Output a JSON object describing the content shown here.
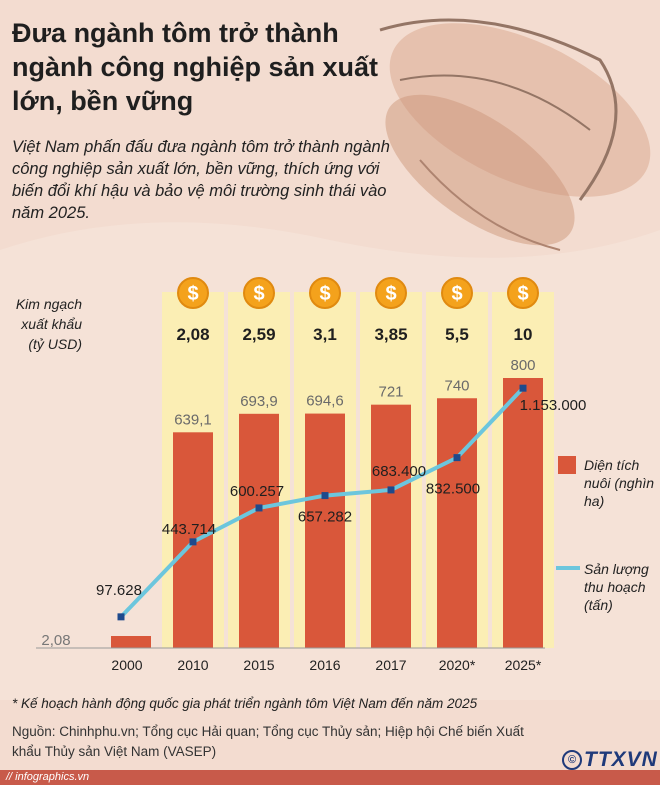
{
  "title": "Đưa ngành tôm trở thành ngành công nghiệp sản xuất lớn, bền vững",
  "subtitle": "Việt Nam phấn đấu đưa ngành tôm trở thành ngành công nghiệp sản xuất lớn, bền vững, thích ứng với biến đổi khí hậu và bảo vệ môi trường sinh thái vào năm 2025.",
  "export_label": "Kim ngạch xuất khẩu (tỷ USD)",
  "coin_symbol": "$",
  "legend": {
    "area_label": "Diện tích nuôi (nghìn ha)",
    "output_label": "Sản lượng thu hoạch (tấn)"
  },
  "footnote": "* Kế hoạch hành động quốc gia phát triển ngành tôm Việt Nam đến năm 2025",
  "source": "Nguồn: Chinhphu.vn; Tổng cục Hải quan; Tổng cục Thủy sản; Hiệp hội Chế biến Xuất khẩu Thủy sản Việt Nam (VASEP)",
  "footer_url": "// infographics.vn",
  "logo": "TTXVN",
  "colors": {
    "bar": "#d9573a",
    "line": "#6cc6dd",
    "marker": "#1e4a8c",
    "column_band": "#fbeeb4",
    "coin": "#f4a21c"
  },
  "chart_data": {
    "type": "bar",
    "categories": [
      "2000",
      "2010",
      "2015",
      "2016",
      "2017",
      "2020*",
      "2025*"
    ],
    "series": [
      {
        "name": "Diện tích nuôi (nghìn ha)",
        "type": "bar",
        "values": [
          2.08,
          639.1,
          693.9,
          694.6,
          721,
          740,
          800
        ],
        "labels": [
          "2,08",
          "639,1",
          "693,9",
          "694,6",
          "721",
          "740",
          "800"
        ]
      },
      {
        "name": "Sản lượng thu hoạch (tấn)",
        "type": "line",
        "values": [
          97628,
          443714,
          600257,
          657282,
          683400,
          832500,
          1153000
        ],
        "labels": [
          "97.628",
          "443.714",
          "600.257",
          "657.282",
          "683.400",
          "832.500",
          "1.153.000"
        ]
      },
      {
        "name": "Kim ngạch xuất khẩu (tỷ USD)",
        "type": "text",
        "values": [
          null,
          2.08,
          2.59,
          3.1,
          3.85,
          5.5,
          10
        ],
        "labels": [
          "",
          "2,08",
          "2,59",
          "3,1",
          "3,85",
          "5,5",
          "10"
        ]
      }
    ],
    "ylim_bar": [
      0,
      800
    ],
    "ylim_line": [
      0,
      1200000
    ]
  }
}
